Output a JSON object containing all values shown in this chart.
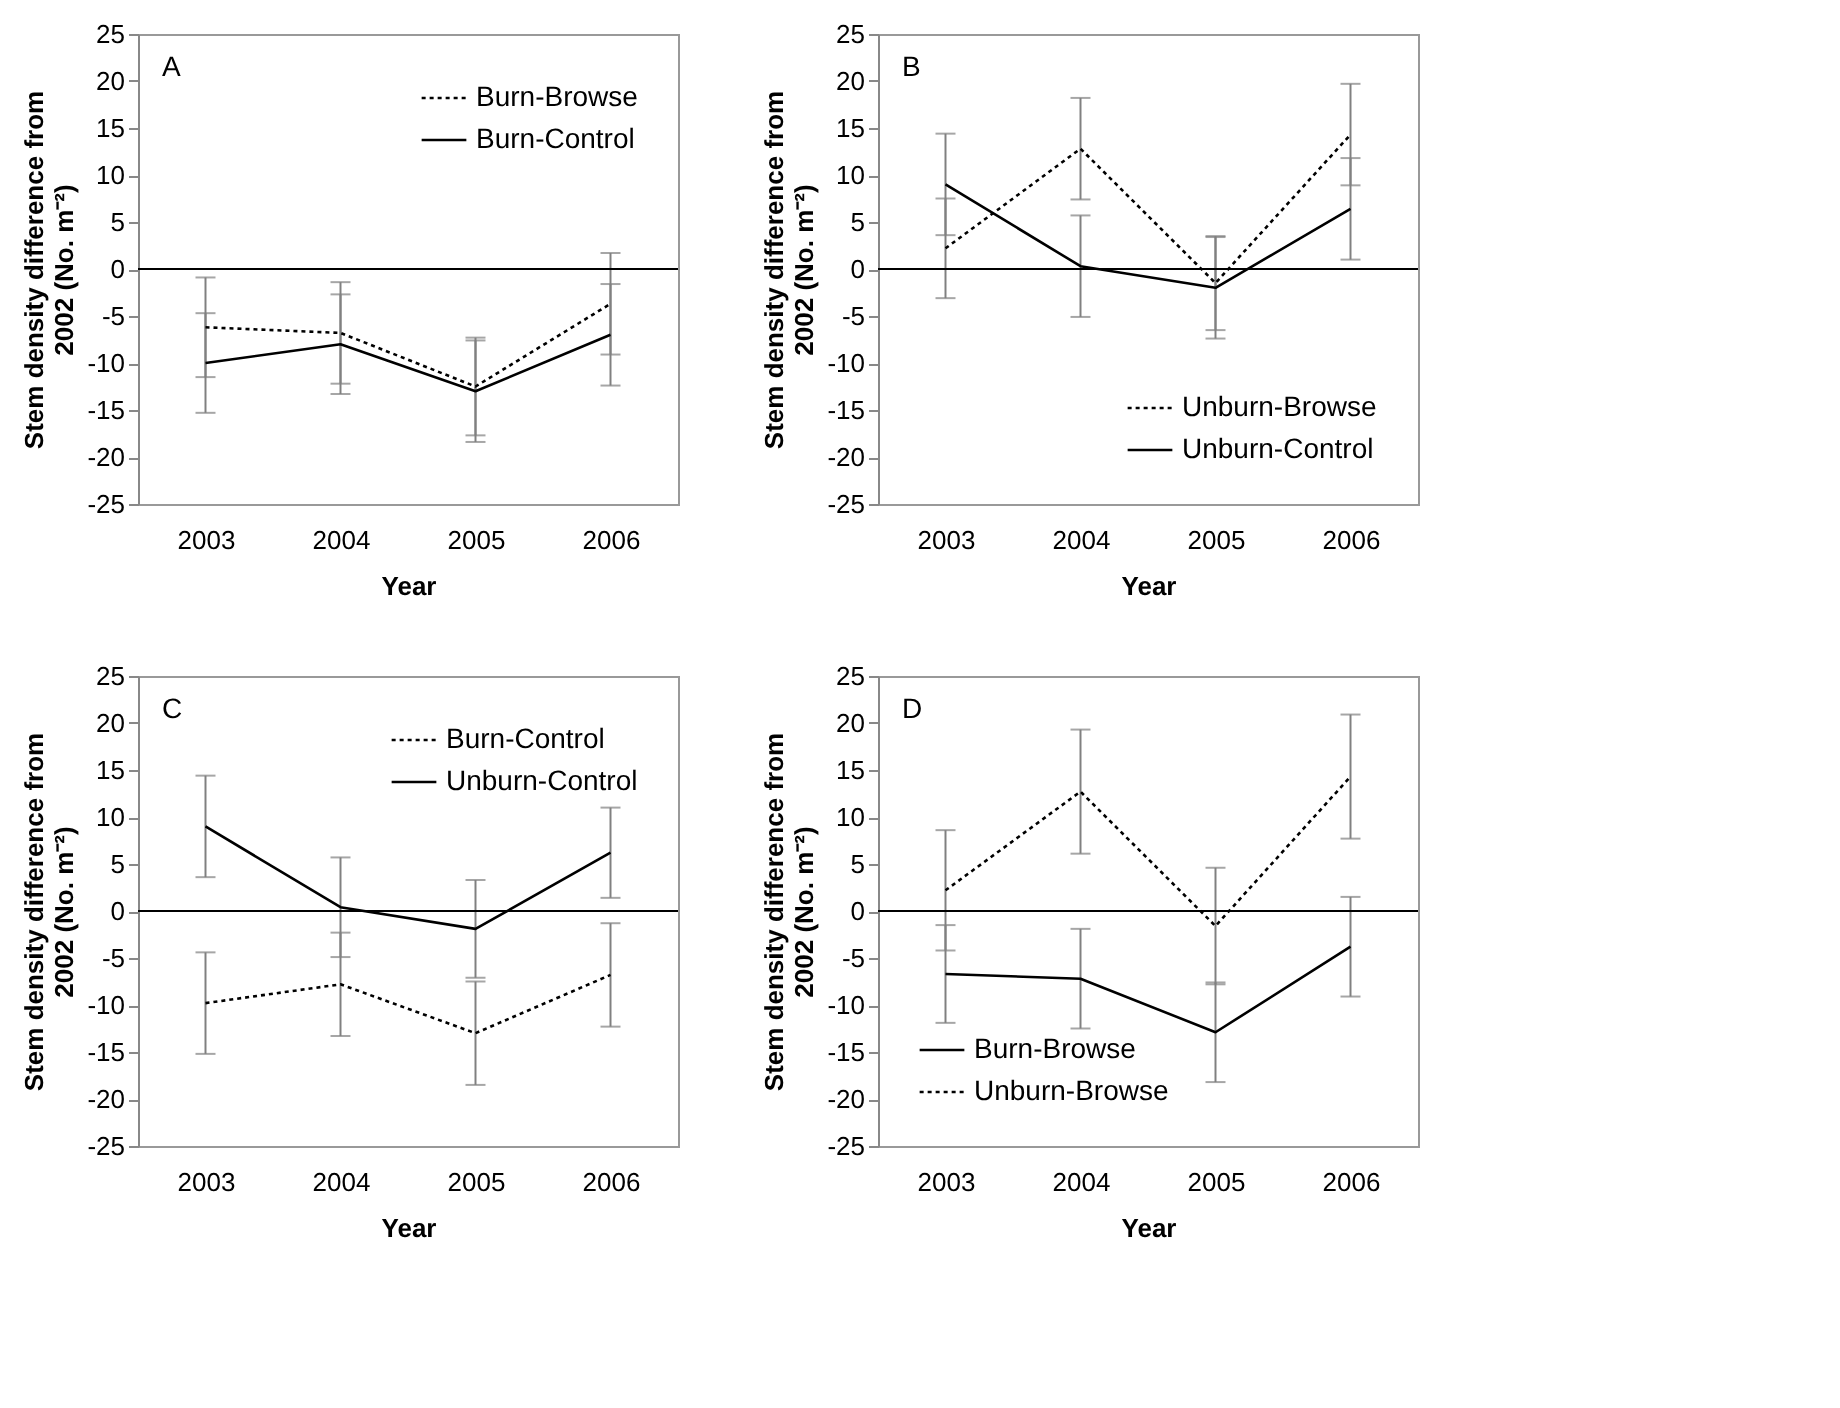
{
  "chart_data": [
    {
      "type": "line",
      "categories": [
        "2003",
        "2004",
        "2005",
        "2006"
      ],
      "xlabel": "Year",
      "ylabel": "Stem density difference from 2002 (No. m⁻²)",
      "ylim": [
        -25,
        25
      ],
      "yticks": [
        -25,
        -20,
        -15,
        -10,
        -5,
        0,
        5,
        10,
        15,
        20,
        25
      ],
      "legend": "top right",
      "annotations": [
        "A"
      ],
      "ref_lines": [
        {
          "axis": "y",
          "value": 0,
          "color": "#000000"
        }
      ],
      "series": [
        {
          "name": "Burn-Browse",
          "color": "#000000",
          "line_style": "dotted",
          "values": [
            -6.2,
            -6.8,
            -12.5,
            -3.7
          ],
          "errors": [
            5.3,
            5.4,
            5.2,
            5.4
          ]
        },
        {
          "name": "Burn-Control",
          "color": "#000000",
          "line_style": "solid",
          "values": [
            -10,
            -8,
            -13,
            -7
          ],
          "errors": [
            5.3,
            5.3,
            5.4,
            5.4
          ]
        }
      ]
    },
    {
      "type": "line",
      "categories": [
        "2003",
        "2004",
        "2005",
        "2006"
      ],
      "xlabel": "Year",
      "ylabel": "Stem density difference from 2002 (No. m⁻²)",
      "ylim": [
        -25,
        25
      ],
      "yticks": [
        -25,
        -20,
        -15,
        -10,
        -5,
        0,
        5,
        10,
        15,
        20,
        25
      ],
      "legend": "bottom right",
      "annotations": [
        "B"
      ],
      "ref_lines": [
        {
          "axis": "y",
          "value": 0,
          "color": "#000000"
        }
      ],
      "series": [
        {
          "name": "Unburn-Browse",
          "color": "#000000",
          "line_style": "dotted",
          "values": [
            2.2,
            12.8,
            -1.5,
            14.3
          ],
          "errors": [
            5.3,
            5.4,
            5.0,
            5.4
          ]
        },
        {
          "name": "Unburn-Control",
          "color": "#000000",
          "line_style": "solid",
          "values": [
            9,
            0.3,
            -2,
            6.4
          ],
          "errors": [
            5.4,
            5.4,
            5.4,
            5.4
          ]
        }
      ]
    },
    {
      "type": "line",
      "categories": [
        "2003",
        "2004",
        "2005",
        "2006"
      ],
      "xlabel": "Year",
      "ylabel": "Stem density difference from 2002 (No. m⁻²)",
      "ylim": [
        -25,
        25
      ],
      "yticks": [
        -25,
        -20,
        -15,
        -10,
        -5,
        0,
        5,
        10,
        15,
        20,
        25
      ],
      "legend": "top right",
      "annotations": [
        "C"
      ],
      "ref_lines": [
        {
          "axis": "y",
          "value": 0,
          "color": "#000000"
        }
      ],
      "series": [
        {
          "name": "Burn-Control",
          "color": "#000000",
          "line_style": "dotted",
          "values": [
            -9.8,
            -7.8,
            -13,
            -6.8
          ],
          "errors": [
            5.4,
            5.5,
            5.5,
            5.5
          ]
        },
        {
          "name": "Unburn-Control",
          "color": "#000000",
          "line_style": "solid",
          "values": [
            9,
            0.4,
            -1.9,
            6.2
          ],
          "errors": [
            5.4,
            5.3,
            5.2,
            4.8
          ]
        }
      ]
    },
    {
      "type": "line",
      "categories": [
        "2003",
        "2004",
        "2005",
        "2006"
      ],
      "xlabel": "Year",
      "ylabel": "Stem density difference from 2002 (No. m⁻²)",
      "ylim": [
        -25,
        25
      ],
      "yticks": [
        -25,
        -20,
        -15,
        -10,
        -5,
        0,
        5,
        10,
        15,
        20,
        25
      ],
      "legend": "bottom left",
      "annotations": [
        "D"
      ],
      "ref_lines": [
        {
          "axis": "y",
          "value": 0,
          "color": "#000000"
        }
      ],
      "series": [
        {
          "name": "Burn-Browse",
          "color": "#000000",
          "line_style": "solid",
          "values": [
            -6.7,
            -7.2,
            -12.9,
            -3.8
          ],
          "errors": [
            5.2,
            5.3,
            5.3,
            5.3
          ]
        },
        {
          "name": "Unburn-Browse",
          "color": "#000000",
          "line_style": "dotted",
          "values": [
            2.2,
            12.7,
            -1.6,
            14.3
          ],
          "errors": [
            6.4,
            6.6,
            6.2,
            6.6
          ]
        }
      ]
    }
  ]
}
